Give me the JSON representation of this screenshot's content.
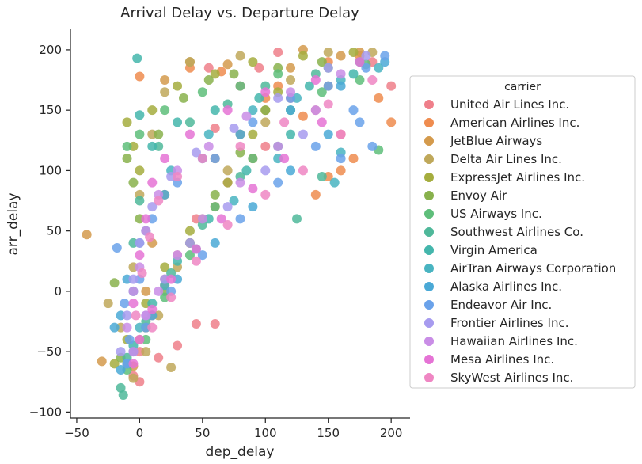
{
  "chart_data": {
    "type": "scatter",
    "title": "Arrival Delay vs. Departure Delay",
    "xlabel": "dep_delay",
    "ylabel": "arr_delay",
    "xlim": [
      -55,
      215
    ],
    "ylim": [
      -105,
      217
    ],
    "xticks": [
      -50,
      0,
      50,
      100,
      150,
      200
    ],
    "yticks": [
      -100,
      -50,
      0,
      50,
      100,
      150,
      200
    ],
    "xtick_labels": [
      "−50",
      "0",
      "50",
      "100",
      "150",
      "200"
    ],
    "ytick_labels": [
      "−100",
      "−50",
      "0",
      "50",
      "100",
      "150",
      "200"
    ],
    "grid": false,
    "legend": {
      "title": "carrier",
      "placement": "right"
    },
    "series": [
      {
        "name": "United Air Lines Inc.",
        "color": "#ef7f8a",
        "points": [
          [
            110,
            198
          ],
          [
            95,
            185
          ],
          [
            80,
            170
          ],
          [
            120,
            160
          ],
          [
            140,
            150
          ],
          [
            60,
            135
          ],
          [
            100,
            120
          ],
          [
            70,
            90
          ],
          [
            45,
            60
          ],
          [
            30,
            30
          ],
          [
            20,
            10
          ],
          [
            10,
            -20
          ],
          [
            0,
            -50
          ],
          [
            -5,
            -70
          ],
          [
            60,
            -27
          ],
          [
            45,
            -27
          ],
          [
            160,
            130
          ],
          [
            185,
            190
          ],
          [
            55,
            185
          ],
          [
            200,
            170
          ],
          [
            15,
            -55
          ],
          [
            0,
            -75
          ],
          [
            30,
            -45
          ]
        ]
      },
      {
        "name": "American Airlines Inc.",
        "color": "#ef8c4f",
        "points": [
          [
            0,
            178
          ],
          [
            65,
            182
          ],
          [
            150,
            190
          ],
          [
            175,
            195
          ],
          [
            100,
            160
          ],
          [
            130,
            145
          ],
          [
            90,
            110
          ],
          [
            150,
            95
          ],
          [
            60,
            70
          ],
          [
            40,
            40
          ],
          [
            20,
            5
          ],
          [
            5,
            -30
          ],
          [
            -10,
            -60
          ],
          [
            170,
            110
          ],
          [
            160,
            100
          ],
          [
            140,
            80
          ],
          [
            110,
            170
          ],
          [
            40,
            185
          ],
          [
            200,
            140
          ],
          [
            190,
            160
          ]
        ]
      },
      {
        "name": "JetBlue Airways",
        "color": "#d49a4c",
        "points": [
          [
            -42,
            47
          ],
          [
            -30,
            -58
          ],
          [
            20,
            175
          ],
          [
            40,
            190
          ],
          [
            70,
            188
          ],
          [
            120,
            185
          ],
          [
            175,
            198
          ],
          [
            100,
            150
          ],
          [
            80,
            130
          ],
          [
            60,
            110
          ],
          [
            20,
            80
          ],
          [
            10,
            40
          ],
          [
            5,
            0
          ],
          [
            0,
            -40
          ],
          [
            -5,
            -62
          ],
          [
            150,
            170
          ],
          [
            130,
            200
          ],
          [
            160,
            195
          ]
        ]
      },
      {
        "name": "Delta Air Lines Inc.",
        "color": "#bfa85a",
        "points": [
          [
            -25,
            -10
          ],
          [
            -15,
            -30
          ],
          [
            -5,
            20
          ],
          [
            0,
            80
          ],
          [
            10,
            130
          ],
          [
            20,
            165
          ],
          [
            40,
            190
          ],
          [
            80,
            195
          ],
          [
            150,
            198
          ],
          [
            185,
            198
          ],
          [
            120,
            175
          ],
          [
            100,
            140
          ],
          [
            70,
            100
          ],
          [
            50,
            60
          ],
          [
            30,
            20
          ],
          [
            15,
            -20
          ],
          [
            5,
            -50
          ],
          [
            -5,
            -72
          ],
          [
            25,
            -63
          ]
        ]
      },
      {
        "name": "ExpressJet Airlines Inc.",
        "color": "#a5ad3e",
        "points": [
          [
            -10,
            140
          ],
          [
            -5,
            120
          ],
          [
            0,
            100
          ],
          [
            10,
            150
          ],
          [
            30,
            170
          ],
          [
            60,
            180
          ],
          [
            90,
            190
          ],
          [
            130,
            195
          ],
          [
            170,
            198
          ],
          [
            110,
            165
          ],
          [
            90,
            130
          ],
          [
            70,
            90
          ],
          [
            40,
            50
          ],
          [
            20,
            20
          ],
          [
            5,
            -10
          ],
          [
            -10,
            -40
          ],
          [
            -20,
            -60
          ]
        ]
      },
      {
        "name": "Envoy Air",
        "color": "#88b14c",
        "points": [
          [
            -10,
            110
          ],
          [
            -5,
            90
          ],
          [
            0,
            60
          ],
          [
            15,
            130
          ],
          [
            35,
            160
          ],
          [
            55,
            175
          ],
          [
            75,
            180
          ],
          [
            110,
            185
          ],
          [
            145,
            190
          ],
          [
            100,
            150
          ],
          [
            80,
            115
          ],
          [
            60,
            80
          ],
          [
            40,
            40
          ],
          [
            20,
            0
          ],
          [
            5,
            -30
          ],
          [
            -15,
            -55
          ],
          [
            -20,
            7
          ]
        ]
      },
      {
        "name": "US Airways Inc.",
        "color": "#5ebe7a",
        "points": [
          [
            -10,
            120
          ],
          [
            0,
            130
          ],
          [
            20,
            150
          ],
          [
            50,
            165
          ],
          [
            80,
            170
          ],
          [
            110,
            180
          ],
          [
            150,
            185
          ],
          [
            180,
            188
          ],
          [
            120,
            150
          ],
          [
            90,
            110
          ],
          [
            60,
            70
          ],
          [
            40,
            30
          ],
          [
            20,
            -5
          ],
          [
            5,
            -40
          ],
          [
            -10,
            -65
          ],
          [
            145,
            165
          ],
          [
            175,
            175
          ],
          [
            190,
            117
          ]
        ]
      },
      {
        "name": "Southwest Airlines Co.",
        "color": "#4fb89a",
        "points": [
          [
            -15,
            -80
          ],
          [
            -13,
            -86
          ],
          [
            -5,
            40
          ],
          [
            0,
            75
          ],
          [
            15,
            120
          ],
          [
            40,
            140
          ],
          [
            70,
            155
          ],
          [
            100,
            170
          ],
          [
            140,
            180
          ],
          [
            175,
            190
          ],
          [
            125,
            60
          ],
          [
            145,
            95
          ],
          [
            110,
            120
          ],
          [
            80,
            95
          ],
          [
            50,
            55
          ],
          [
            25,
            15
          ],
          [
            5,
            -25
          ],
          [
            -10,
            -55
          ]
        ]
      },
      {
        "name": "Virgin America",
        "color": "#44b6ac",
        "points": [
          [
            -2,
            193
          ],
          [
            0,
            146
          ],
          [
            10,
            120
          ],
          [
            30,
            140
          ],
          [
            60,
            150
          ],
          [
            95,
            160
          ],
          [
            135,
            170
          ],
          [
            170,
            180
          ],
          [
            120,
            130
          ],
          [
            85,
            100
          ],
          [
            55,
            60
          ],
          [
            30,
            25
          ],
          [
            10,
            -10
          ],
          [
            -5,
            -45
          ]
        ]
      },
      {
        "name": "AirTran Airways Corporation",
        "color": "#49b4c1",
        "points": [
          [
            -5,
            0
          ],
          [
            5,
            50
          ],
          [
            25,
            100
          ],
          [
            55,
            130
          ],
          [
            90,
            150
          ],
          [
            125,
            160
          ],
          [
            160,
            175
          ],
          [
            190,
            185
          ],
          [
            110,
            110
          ],
          [
            75,
            75
          ],
          [
            45,
            35
          ],
          [
            20,
            5
          ],
          [
            0,
            -30
          ],
          [
            -10,
            -60
          ],
          [
            155,
            90
          ],
          [
            160,
            115
          ]
        ]
      },
      {
        "name": "Alaska Airlines Inc.",
        "color": "#4aa9d6",
        "points": [
          [
            -20,
            -30
          ],
          [
            -15,
            -20
          ],
          [
            -10,
            10
          ],
          [
            0,
            40
          ],
          [
            20,
            80
          ],
          [
            50,
            110
          ],
          [
            80,
            130
          ],
          [
            120,
            150
          ],
          [
            160,
            170
          ],
          [
            195,
            190
          ],
          [
            150,
            130
          ],
          [
            120,
            100
          ],
          [
            90,
            70
          ],
          [
            60,
            40
          ],
          [
            30,
            10
          ],
          [
            10,
            -20
          ],
          [
            -5,
            -50
          ],
          [
            -15,
            -65
          ]
        ]
      },
      {
        "name": "Endeavor Air Inc.",
        "color": "#6aa2ea",
        "points": [
          [
            -18,
            36
          ],
          [
            -12,
            -10
          ],
          [
            -8,
            -40
          ],
          [
            0,
            10
          ],
          [
            10,
            60
          ],
          [
            30,
            90
          ],
          [
            60,
            110
          ],
          [
            90,
            140
          ],
          [
            120,
            160
          ],
          [
            150,
            170
          ],
          [
            180,
            185
          ],
          [
            195,
            195
          ],
          [
            170,
            150
          ],
          [
            140,
            120
          ],
          [
            110,
            90
          ],
          [
            80,
            60
          ],
          [
            50,
            30
          ],
          [
            25,
            0
          ],
          [
            5,
            -30
          ],
          [
            -10,
            -60
          ],
          [
            185,
            120
          ],
          [
            175,
            140
          ],
          [
            160,
            110
          ]
        ]
      },
      {
        "name": "Frontier Airlines Inc.",
        "color": "#a79bef",
        "points": [
          [
            -15,
            -50
          ],
          [
            -10,
            -20
          ],
          [
            -5,
            10
          ],
          [
            0,
            40
          ],
          [
            10,
            70
          ],
          [
            25,
            95
          ],
          [
            45,
            115
          ],
          [
            75,
            135
          ],
          [
            110,
            160
          ],
          [
            150,
            185
          ],
          [
            180,
            195
          ],
          [
            130,
            130
          ],
          [
            100,
            100
          ],
          [
            70,
            70
          ],
          [
            40,
            40
          ],
          [
            20,
            10
          ],
          [
            5,
            -20
          ]
        ]
      },
      {
        "name": "Hawaiian Airlines Inc.",
        "color": "#c98de6",
        "points": [
          [
            -10,
            -30
          ],
          [
            -5,
            0
          ],
          [
            0,
            20
          ],
          [
            5,
            50
          ],
          [
            15,
            80
          ],
          [
            30,
            100
          ],
          [
            55,
            120
          ],
          [
            85,
            145
          ],
          [
            120,
            165
          ],
          [
            160,
            180
          ],
          [
            140,
            150
          ],
          [
            110,
            120
          ],
          [
            80,
            90
          ],
          [
            50,
            60
          ],
          [
            30,
            30
          ],
          [
            15,
            0
          ],
          [
            5,
            -20
          ],
          [
            -5,
            -50
          ]
        ]
      },
      {
        "name": "Mesa Airlines Inc.",
        "color": "#e573d5",
        "points": [
          [
            -5,
            -10
          ],
          [
            0,
            30
          ],
          [
            5,
            60
          ],
          [
            10,
            90
          ],
          [
            20,
            110
          ],
          [
            40,
            130
          ],
          [
            70,
            150
          ],
          [
            100,
            165
          ],
          [
            140,
            175
          ],
          [
            175,
            190
          ],
          [
            145,
            140
          ],
          [
            115,
            110
          ],
          [
            90,
            85
          ],
          [
            65,
            60
          ],
          [
            45,
            35
          ],
          [
            25,
            10
          ],
          [
            10,
            -15
          ],
          [
            0,
            -40
          ],
          [
            -5,
            -60
          ]
        ]
      },
      {
        "name": "SkyWest Airlines Inc.",
        "color": "#ef86c3",
        "points": [
          [
            -3,
            -20
          ],
          [
            2,
            15
          ],
          [
            8,
            45
          ],
          [
            15,
            75
          ],
          [
            30,
            95
          ],
          [
            50,
            110
          ],
          [
            80,
            120
          ],
          [
            115,
            140
          ],
          [
            150,
            155
          ],
          [
            185,
            175
          ],
          [
            160,
            130
          ],
          [
            130,
            100
          ],
          [
            100,
            80
          ],
          [
            70,
            55
          ],
          [
            45,
            25
          ],
          [
            25,
            -5
          ],
          [
            10,
            -30
          ]
        ]
      }
    ]
  }
}
